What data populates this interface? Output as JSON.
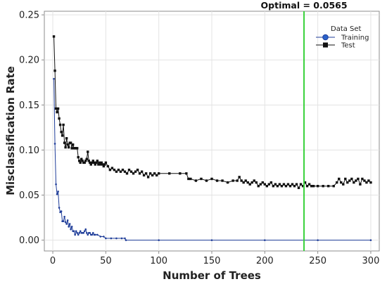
{
  "chart_data": {
    "type": "line",
    "xlabel": "Number of Trees",
    "ylabel": "Misclassification Rate",
    "xlim": [
      -8,
      308
    ],
    "ylim": [
      -0.012,
      0.254
    ],
    "xticks": [
      0,
      50,
      100,
      150,
      200,
      250,
      300
    ],
    "yticks": [
      0.0,
      0.05,
      0.1,
      0.15,
      0.2,
      0.25
    ],
    "ytick_labels": [
      "0.00",
      "0.05",
      "0.10",
      "0.15",
      "0.20",
      "0.25"
    ],
    "grid": true,
    "legend": {
      "title": "Data Set",
      "placement": "top-right",
      "entries": [
        "Training",
        "Test"
      ]
    },
    "annotation": {
      "text": "Optimal = 0.0565",
      "x": 237,
      "color": "#38d13a"
    },
    "series": [
      {
        "name": "Training",
        "color": "#1f3d99",
        "marker": "circle",
        "points": [
          [
            1,
            0.179
          ],
          [
            2,
            0.107
          ],
          [
            3,
            0.062
          ],
          [
            4,
            0.051
          ],
          [
            5,
            0.054
          ],
          [
            6,
            0.036
          ],
          [
            7,
            0.031
          ],
          [
            8,
            0.032
          ],
          [
            9,
            0.021
          ],
          [
            10,
            0.021
          ],
          [
            11,
            0.026
          ],
          [
            12,
            0.02
          ],
          [
            13,
            0.018
          ],
          [
            14,
            0.022
          ],
          [
            15,
            0.015
          ],
          [
            16,
            0.018
          ],
          [
            17,
            0.012
          ],
          [
            18,
            0.015
          ],
          [
            19,
            0.01
          ],
          [
            20,
            0.01
          ],
          [
            21,
            0.006
          ],
          [
            22,
            0.01
          ],
          [
            23,
            0.008
          ],
          [
            24,
            0.006
          ],
          [
            25,
            0.008
          ],
          [
            26,
            0.01
          ],
          [
            27,
            0.008
          ],
          [
            28,
            0.008
          ],
          [
            29,
            0.008
          ],
          [
            30,
            0.01
          ],
          [
            31,
            0.012
          ],
          [
            32,
            0.008
          ],
          [
            33,
            0.006
          ],
          [
            34,
            0.008
          ],
          [
            35,
            0.008
          ],
          [
            36,
            0.006
          ],
          [
            37,
            0.006
          ],
          [
            38,
            0.008
          ],
          [
            39,
            0.006
          ],
          [
            40,
            0.006
          ],
          [
            42,
            0.006
          ],
          [
            45,
            0.004
          ],
          [
            48,
            0.004
          ],
          [
            50,
            0.002
          ],
          [
            55,
            0.002
          ],
          [
            60,
            0.002
          ],
          [
            65,
            0.002
          ],
          [
            68,
            0.002
          ],
          [
            69,
            0.0
          ],
          [
            100,
            0.0
          ],
          [
            150,
            0.0
          ],
          [
            200,
            0.0
          ],
          [
            250,
            0.0
          ],
          [
            300,
            0.0
          ]
        ]
      },
      {
        "name": "Test",
        "color": "#111111",
        "marker": "square",
        "points": [
          [
            1,
            0.226
          ],
          [
            2,
            0.188
          ],
          [
            3,
            0.146
          ],
          [
            4,
            0.142
          ],
          [
            5,
            0.146
          ],
          [
            6,
            0.135
          ],
          [
            7,
            0.128
          ],
          [
            8,
            0.12
          ],
          [
            9,
            0.116
          ],
          [
            10,
            0.128
          ],
          [
            11,
            0.108
          ],
          [
            12,
            0.103
          ],
          [
            13,
            0.113
          ],
          [
            14,
            0.106
          ],
          [
            15,
            0.103
          ],
          [
            16,
            0.108
          ],
          [
            17,
            0.108
          ],
          [
            18,
            0.102
          ],
          [
            19,
            0.106
          ],
          [
            20,
            0.102
          ],
          [
            21,
            0.102
          ],
          [
            22,
            0.102
          ],
          [
            23,
            0.102
          ],
          [
            24,
            0.092
          ],
          [
            25,
            0.088
          ],
          [
            26,
            0.086
          ],
          [
            27,
            0.09
          ],
          [
            28,
            0.088
          ],
          [
            29,
            0.086
          ],
          [
            30,
            0.086
          ],
          [
            31,
            0.088
          ],
          [
            32,
            0.09
          ],
          [
            33,
            0.098
          ],
          [
            34,
            0.088
          ],
          [
            35,
            0.086
          ],
          [
            36,
            0.084
          ],
          [
            37,
            0.086
          ],
          [
            38,
            0.088
          ],
          [
            39,
            0.086
          ],
          [
            40,
            0.084
          ],
          [
            41,
            0.086
          ],
          [
            42,
            0.088
          ],
          [
            43,
            0.084
          ],
          [
            44,
            0.086
          ],
          [
            45,
            0.084
          ],
          [
            46,
            0.086
          ],
          [
            47,
            0.084
          ],
          [
            48,
            0.082
          ],
          [
            49,
            0.084
          ],
          [
            50,
            0.086
          ],
          [
            52,
            0.082
          ],
          [
            54,
            0.078
          ],
          [
            56,
            0.08
          ],
          [
            58,
            0.078
          ],
          [
            60,
            0.076
          ],
          [
            62,
            0.078
          ],
          [
            64,
            0.076
          ],
          [
            66,
            0.078
          ],
          [
            68,
            0.076
          ],
          [
            70,
            0.074
          ],
          [
            72,
            0.078
          ],
          [
            74,
            0.076
          ],
          [
            76,
            0.074
          ],
          [
            78,
            0.076
          ],
          [
            80,
            0.078
          ],
          [
            82,
            0.074
          ],
          [
            84,
            0.076
          ],
          [
            86,
            0.072
          ],
          [
            88,
            0.074
          ],
          [
            90,
            0.07
          ],
          [
            92,
            0.074
          ],
          [
            94,
            0.072
          ],
          [
            96,
            0.074
          ],
          [
            98,
            0.072
          ],
          [
            100,
            0.074
          ],
          [
            110,
            0.074
          ],
          [
            120,
            0.074
          ],
          [
            126,
            0.074
          ],
          [
            128,
            0.068
          ],
          [
            130,
            0.068
          ],
          [
            135,
            0.066
          ],
          [
            140,
            0.068
          ],
          [
            145,
            0.066
          ],
          [
            150,
            0.068
          ],
          [
            155,
            0.066
          ],
          [
            160,
            0.066
          ],
          [
            165,
            0.064
          ],
          [
            170,
            0.066
          ],
          [
            174,
            0.066
          ],
          [
            176,
            0.07
          ],
          [
            178,
            0.066
          ],
          [
            180,
            0.064
          ],
          [
            182,
            0.066
          ],
          [
            184,
            0.064
          ],
          [
            186,
            0.062
          ],
          [
            188,
            0.064
          ],
          [
            190,
            0.066
          ],
          [
            192,
            0.064
          ],
          [
            194,
            0.06
          ],
          [
            196,
            0.062
          ],
          [
            198,
            0.064
          ],
          [
            200,
            0.062
          ],
          [
            202,
            0.06
          ],
          [
            204,
            0.062
          ],
          [
            206,
            0.064
          ],
          [
            208,
            0.06
          ],
          [
            210,
            0.062
          ],
          [
            212,
            0.06
          ],
          [
            214,
            0.062
          ],
          [
            216,
            0.06
          ],
          [
            218,
            0.062
          ],
          [
            220,
            0.06
          ],
          [
            222,
            0.062
          ],
          [
            224,
            0.06
          ],
          [
            226,
            0.062
          ],
          [
            228,
            0.06
          ],
          [
            230,
            0.062
          ],
          [
            232,
            0.058
          ],
          [
            234,
            0.062
          ],
          [
            236,
            0.06
          ],
          [
            238,
            0.064
          ],
          [
            240,
            0.06
          ],
          [
            242,
            0.062
          ],
          [
            244,
            0.06
          ],
          [
            246,
            0.06
          ],
          [
            250,
            0.06
          ],
          [
            255,
            0.06
          ],
          [
            260,
            0.06
          ],
          [
            265,
            0.06
          ],
          [
            268,
            0.064
          ],
          [
            270,
            0.068
          ],
          [
            272,
            0.064
          ],
          [
            274,
            0.062
          ],
          [
            276,
            0.068
          ],
          [
            278,
            0.064
          ],
          [
            280,
            0.066
          ],
          [
            282,
            0.068
          ],
          [
            284,
            0.064
          ],
          [
            286,
            0.066
          ],
          [
            288,
            0.068
          ],
          [
            290,
            0.062
          ],
          [
            292,
            0.068
          ],
          [
            294,
            0.066
          ],
          [
            296,
            0.064
          ],
          [
            298,
            0.066
          ],
          [
            300,
            0.064
          ]
        ]
      }
    ]
  }
}
